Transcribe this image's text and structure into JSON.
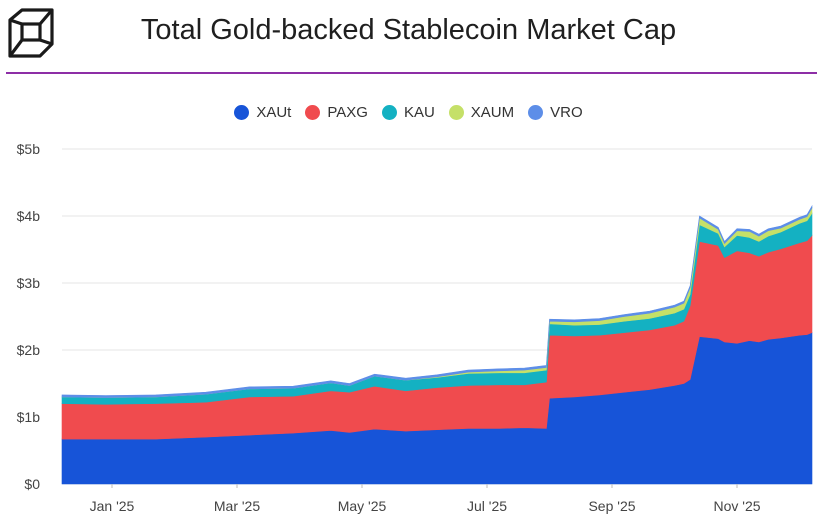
{
  "header": {
    "title": "Total Gold-backed Stablecoin Market Cap"
  },
  "legend": [
    {
      "name": "XAUt",
      "color": "#1754d8"
    },
    {
      "name": "PAXG",
      "color": "#f04b4e"
    },
    {
      "name": "KAU",
      "color": "#14b1c2"
    },
    {
      "name": "XAUM",
      "color": "#c5e068"
    },
    {
      "name": "VRO",
      "color": "#5d8ee8"
    }
  ],
  "colors": {
    "brand_line": "#8d2ea6",
    "grid": "#e6e6e6"
  },
  "chart_data": {
    "type": "area",
    "stacked": true,
    "title": "Total Gold-backed Stablecoin Market Cap",
    "xlabel": "",
    "ylabel": "",
    "ylim": [
      0,
      5
    ],
    "y_unit": "billion USD",
    "y_ticks": [
      "$0",
      "$1b",
      "$2b",
      "$3b",
      "$4b",
      "$5b"
    ],
    "x_range": [
      "2024-12-20",
      "2025-12-01"
    ],
    "x_ticks": [
      {
        "label": "Jan '25",
        "month": 0.8
      },
      {
        "label": "Mar '25",
        "month": 2.8
      },
      {
        "label": "May '25",
        "month": 4.8
      },
      {
        "label": "Jul '25",
        "month": 6.8
      },
      {
        "label": "Sep '25",
        "month": 8.8
      },
      {
        "label": "Nov '25",
        "month": 10.8
      }
    ],
    "x_months": [
      0.0,
      0.7,
      1.5,
      2.3,
      3.0,
      3.7,
      4.3,
      4.6,
      5.0,
      5.5,
      6.0,
      6.5,
      7.0,
      7.4,
      7.75,
      7.8,
      8.2,
      8.6,
      9.0,
      9.4,
      9.8,
      9.95,
      10.05,
      10.2,
      10.5,
      10.6,
      10.8,
      11.0,
      11.15,
      11.3,
      11.5,
      11.8,
      11.92,
      12.0
    ],
    "series": [
      {
        "name": "XAUt",
        "values": [
          0.67,
          0.67,
          0.67,
          0.7,
          0.73,
          0.76,
          0.8,
          0.77,
          0.82,
          0.79,
          0.81,
          0.83,
          0.83,
          0.84,
          0.83,
          1.28,
          1.3,
          1.33,
          1.37,
          1.41,
          1.47,
          1.5,
          1.56,
          2.2,
          2.17,
          2.12,
          2.1,
          2.14,
          2.12,
          2.16,
          2.18,
          2.22,
          2.23,
          2.26
        ]
      },
      {
        "name": "PAXG",
        "values": [
          0.53,
          0.52,
          0.53,
          0.52,
          0.57,
          0.55,
          0.59,
          0.6,
          0.64,
          0.6,
          0.63,
          0.64,
          0.65,
          0.64,
          0.69,
          0.94,
          0.91,
          0.89,
          0.89,
          0.89,
          0.9,
          0.93,
          1.1,
          1.42,
          1.39,
          1.26,
          1.38,
          1.31,
          1.28,
          1.3,
          1.33,
          1.38,
          1.4,
          1.45
        ]
      },
      {
        "name": "KAU",
        "values": [
          0.1,
          0.1,
          0.1,
          0.12,
          0.12,
          0.12,
          0.12,
          0.1,
          0.15,
          0.16,
          0.15,
          0.18,
          0.18,
          0.18,
          0.18,
          0.17,
          0.16,
          0.16,
          0.17,
          0.17,
          0.18,
          0.18,
          0.17,
          0.25,
          0.18,
          0.16,
          0.23,
          0.23,
          0.22,
          0.24,
          0.25,
          0.29,
          0.3,
          0.33
        ]
      },
      {
        "name": "XAUM",
        "values": [
          0.0,
          0.0,
          0.0,
          0.0,
          0.0,
          0.0,
          0.0,
          0.0,
          0.0,
          0.0,
          0.01,
          0.02,
          0.03,
          0.04,
          0.04,
          0.04,
          0.05,
          0.06,
          0.07,
          0.08,
          0.09,
          0.09,
          0.1,
          0.1,
          0.06,
          0.05,
          0.07,
          0.09,
          0.08,
          0.08,
          0.06,
          0.06,
          0.06,
          0.08
        ]
      },
      {
        "name": "VRO",
        "values": [
          0.03,
          0.03,
          0.03,
          0.03,
          0.03,
          0.03,
          0.03,
          0.03,
          0.03,
          0.03,
          0.03,
          0.03,
          0.03,
          0.03,
          0.03,
          0.03,
          0.03,
          0.03,
          0.03,
          0.03,
          0.03,
          0.03,
          0.03,
          0.03,
          0.03,
          0.03,
          0.03,
          0.03,
          0.03,
          0.03,
          0.03,
          0.03,
          0.03,
          0.03
        ]
      }
    ]
  }
}
